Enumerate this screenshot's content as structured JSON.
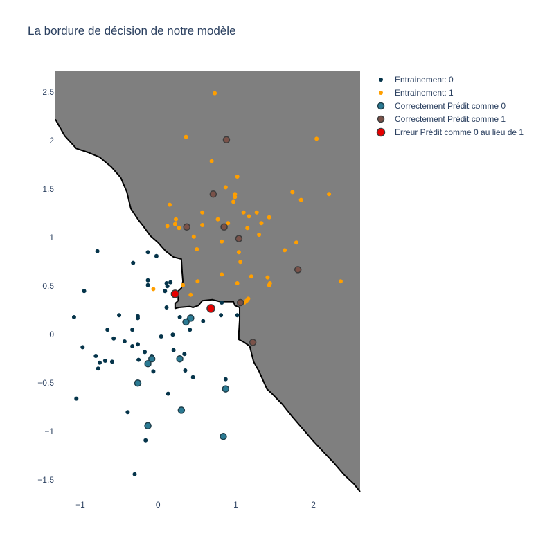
{
  "chart_data": {
    "type": "scatter",
    "title": "La bordure de décision de notre modèle",
    "xlabel": "",
    "ylabel": "",
    "xlim": [
      -1.32,
      2.6
    ],
    "ylim": [
      -1.62,
      2.73
    ],
    "xticks": [
      -1,
      0,
      1,
      2
    ],
    "xtick_labels": [
      "−1",
      "0",
      "1",
      "2"
    ],
    "yticks": [
      -1.5,
      -1,
      -0.5,
      0,
      0.5,
      1,
      1.5,
      2,
      2.5
    ],
    "ytick_labels": [
      "−1.5",
      "−1",
      "−0.5",
      "0",
      "0.5",
      "1",
      "1.5",
      "2",
      "2.5"
    ],
    "legend_position": "right",
    "colors": {
      "class0": "#05344a",
      "class1": "#ff9f00",
      "correct0": "#2b7a93",
      "correct1": "#7a5249",
      "error": "#e60000",
      "region1": "#7f7f7f",
      "boundary": "#000000"
    },
    "decision_region": {
      "label_class": 1,
      "boundary": [
        [
          -1.32,
          2.22
        ],
        [
          -1.2,
          2.05
        ],
        [
          -1.05,
          1.92
        ],
        [
          -0.9,
          1.88
        ],
        [
          -0.75,
          1.83
        ],
        [
          -0.6,
          1.73
        ],
        [
          -0.48,
          1.62
        ],
        [
          -0.4,
          1.47
        ],
        [
          -0.35,
          1.3
        ],
        [
          -0.25,
          1.18
        ],
        [
          -0.2,
          1.13
        ],
        [
          -0.1,
          1.02
        ],
        [
          0.0,
          0.95
        ],
        [
          0.1,
          0.86
        ],
        [
          0.2,
          0.8
        ],
        [
          0.3,
          0.78
        ],
        [
          0.31,
          0.65
        ],
        [
          0.32,
          0.55
        ],
        [
          0.3,
          0.48
        ],
        [
          0.26,
          0.45
        ],
        [
          0.26,
          0.35
        ],
        [
          0.22,
          0.32
        ],
        [
          0.22,
          0.27
        ],
        [
          0.27,
          0.28
        ],
        [
          0.41,
          0.29
        ],
        [
          0.45,
          0.28
        ],
        [
          0.52,
          0.3
        ],
        [
          0.57,
          0.35
        ],
        [
          0.7,
          0.36
        ],
        [
          0.8,
          0.34
        ],
        [
          0.97,
          0.34
        ],
        [
          0.99,
          0.3
        ],
        [
          1.05,
          0.28
        ],
        [
          1.05,
          0.15
        ],
        [
          1.04,
          0.02
        ],
        [
          1.04,
          -0.05
        ],
        [
          1.11,
          -0.08
        ],
        [
          1.18,
          -0.12
        ],
        [
          1.23,
          -0.28
        ],
        [
          1.3,
          -0.38
        ],
        [
          1.35,
          -0.47
        ],
        [
          1.4,
          -0.56
        ],
        [
          1.48,
          -0.62
        ],
        [
          1.6,
          -0.72
        ],
        [
          1.72,
          -0.84
        ],
        [
          1.86,
          -0.97
        ],
        [
          2.0,
          -1.1
        ],
        [
          2.14,
          -1.22
        ],
        [
          2.26,
          -1.32
        ],
        [
          2.4,
          -1.45
        ],
        [
          2.52,
          -1.54
        ],
        [
          2.6,
          -1.62
        ]
      ]
    },
    "series": [
      {
        "name": "Entrainement: 0",
        "marker": "small",
        "points": [
          [
            -0.78,
            0.86
          ],
          [
            -0.32,
            0.74
          ],
          [
            -0.13,
            0.85
          ],
          [
            -0.02,
            0.81
          ],
          [
            -0.95,
            0.45
          ],
          [
            -0.13,
            0.56
          ],
          [
            -0.13,
            0.51
          ],
          [
            0.11,
            0.53
          ],
          [
            0.12,
            0.5
          ],
          [
            0.16,
            0.54
          ],
          [
            0.09,
            0.45
          ],
          [
            -1.08,
            0.18
          ],
          [
            0.11,
            0.28
          ],
          [
            -0.5,
            0.2
          ],
          [
            -0.26,
            0.19
          ],
          [
            -0.26,
            0.17
          ],
          [
            0.28,
            0.18
          ],
          [
            0.38,
            0.15
          ],
          [
            0.58,
            0.14
          ],
          [
            0.82,
            0.33
          ],
          [
            0.81,
            0.2
          ],
          [
            1.02,
            0.2
          ],
          [
            -0.65,
            0.05
          ],
          [
            -0.33,
            0.05
          ],
          [
            -0.57,
            -0.04
          ],
          [
            -0.43,
            -0.07
          ],
          [
            0.04,
            -0.02
          ],
          [
            0.19,
            0.0
          ],
          [
            0.41,
            0.05
          ],
          [
            -0.97,
            -0.13
          ],
          [
            -0.33,
            -0.12
          ],
          [
            -0.26,
            -0.1
          ],
          [
            -0.17,
            -0.18
          ],
          [
            -0.08,
            -0.22
          ],
          [
            0.2,
            -0.16
          ],
          [
            0.34,
            -0.2
          ],
          [
            -0.8,
            -0.22
          ],
          [
            -0.75,
            -0.29
          ],
          [
            -0.68,
            -0.27
          ],
          [
            -0.59,
            -0.28
          ],
          [
            -0.25,
            -0.26
          ],
          [
            -0.77,
            -0.35
          ],
          [
            -0.06,
            -0.38
          ],
          [
            0.35,
            -0.37
          ],
          [
            0.45,
            -0.44
          ],
          [
            0.87,
            -0.46
          ],
          [
            0.13,
            -0.61
          ],
          [
            -1.05,
            -0.66
          ],
          [
            -0.39,
            -0.8
          ],
          [
            -0.16,
            -1.09
          ],
          [
            -0.3,
            -1.44
          ]
        ]
      },
      {
        "name": "Entrainement: 1",
        "marker": "small",
        "points": [
          [
            0.73,
            2.49
          ],
          [
            0.36,
            2.04
          ],
          [
            2.04,
            2.02
          ],
          [
            0.69,
            1.79
          ],
          [
            1.02,
            1.63
          ],
          [
            0.87,
            1.52
          ],
          [
            0.99,
            1.45
          ],
          [
            0.99,
            1.42
          ],
          [
            1.73,
            1.47
          ],
          [
            2.2,
            1.45
          ],
          [
            1.84,
            1.39
          ],
          [
            0.97,
            1.37
          ],
          [
            0.15,
            1.34
          ],
          [
            0.57,
            1.26
          ],
          [
            1.1,
            1.26
          ],
          [
            1.27,
            1.26
          ],
          [
            0.23,
            1.19
          ],
          [
            0.77,
            1.19
          ],
          [
            1.17,
            1.22
          ],
          [
            1.43,
            1.21
          ],
          [
            0.9,
            1.15
          ],
          [
            1.33,
            1.15
          ],
          [
            0.12,
            1.12
          ],
          [
            0.22,
            1.14
          ],
          [
            0.57,
            1.13
          ],
          [
            0.27,
            1.1
          ],
          [
            1.15,
            1.1
          ],
          [
            0.46,
            1.01
          ],
          [
            1.3,
            1.03
          ],
          [
            0.82,
            0.96
          ],
          [
            1.78,
            0.95
          ],
          [
            0.5,
            0.88
          ],
          [
            1.63,
            0.87
          ],
          [
            1.04,
            0.85
          ],
          [
            1.06,
            0.75
          ],
          [
            0.82,
            0.62
          ],
          [
            1.2,
            0.6
          ],
          [
            1.41,
            0.59
          ],
          [
            0.51,
            0.55
          ],
          [
            2.35,
            0.55
          ],
          [
            1.44,
            0.53
          ],
          [
            1.43,
            0.51
          ],
          [
            1.02,
            0.53
          ],
          [
            0.32,
            0.51
          ],
          [
            -0.06,
            0.47
          ],
          [
            0.42,
            0.41
          ],
          [
            1.16,
            0.37
          ],
          [
            1.14,
            0.35
          ],
          [
            1.11,
            0.33
          ]
        ]
      },
      {
        "name": "Correctement Prédit comme 0",
        "marker": "large",
        "points": [
          [
            0.36,
            0.13
          ],
          [
            0.42,
            0.17
          ],
          [
            -0.08,
            -0.25
          ],
          [
            0.28,
            -0.25
          ],
          [
            -0.13,
            -0.3
          ],
          [
            -0.26,
            -0.5
          ],
          [
            0.87,
            -0.56
          ],
          [
            0.3,
            -0.78
          ],
          [
            -0.13,
            -0.94
          ],
          [
            0.84,
            -1.05
          ]
        ]
      },
      {
        "name": "Correctement Prédit comme 1",
        "marker": "large",
        "points": [
          [
            0.88,
            2.01
          ],
          [
            0.71,
            1.45
          ],
          [
            0.37,
            1.11
          ],
          [
            0.85,
            1.11
          ],
          [
            1.04,
            0.99
          ],
          [
            1.8,
            0.67
          ],
          [
            1.06,
            0.33
          ],
          [
            1.22,
            -0.08
          ]
        ]
      },
      {
        "name": "Erreur Prédit comme 0 au lieu de 1",
        "marker": "large",
        "points": [
          [
            0.22,
            0.42
          ],
          [
            0.68,
            0.27
          ]
        ]
      }
    ]
  }
}
